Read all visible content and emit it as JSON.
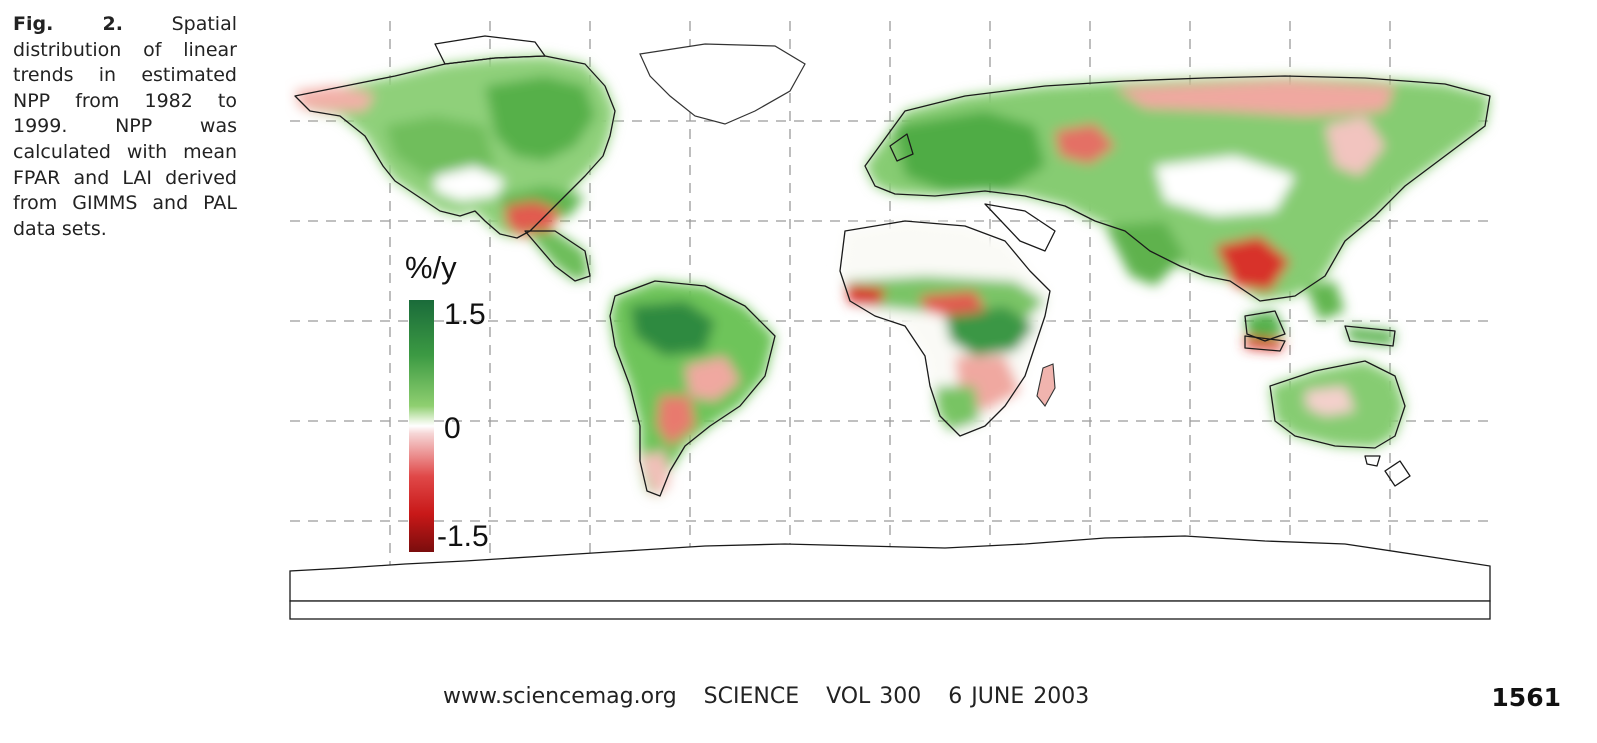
{
  "caption": {
    "label": "Fig. 2.",
    "text": "Spatial distribution of linear trends in estimated NPP from 1982 to 1999. NPP was calculated with mean FPAR and LAI derived from GIMMS and PAL data sets."
  },
  "legend": {
    "title": "%/y",
    "ticks": [
      "1.5",
      "0",
      "-1.5"
    ],
    "colors": {
      "high": "#1a6b3a",
      "mid": "#ffffff",
      "low": "#7a0d0d"
    }
  },
  "footer": {
    "journal_line": "www.sciencemag.org   SCIENCE   VOL 300   6 JUNE 2003",
    "page_number": "1561"
  }
}
